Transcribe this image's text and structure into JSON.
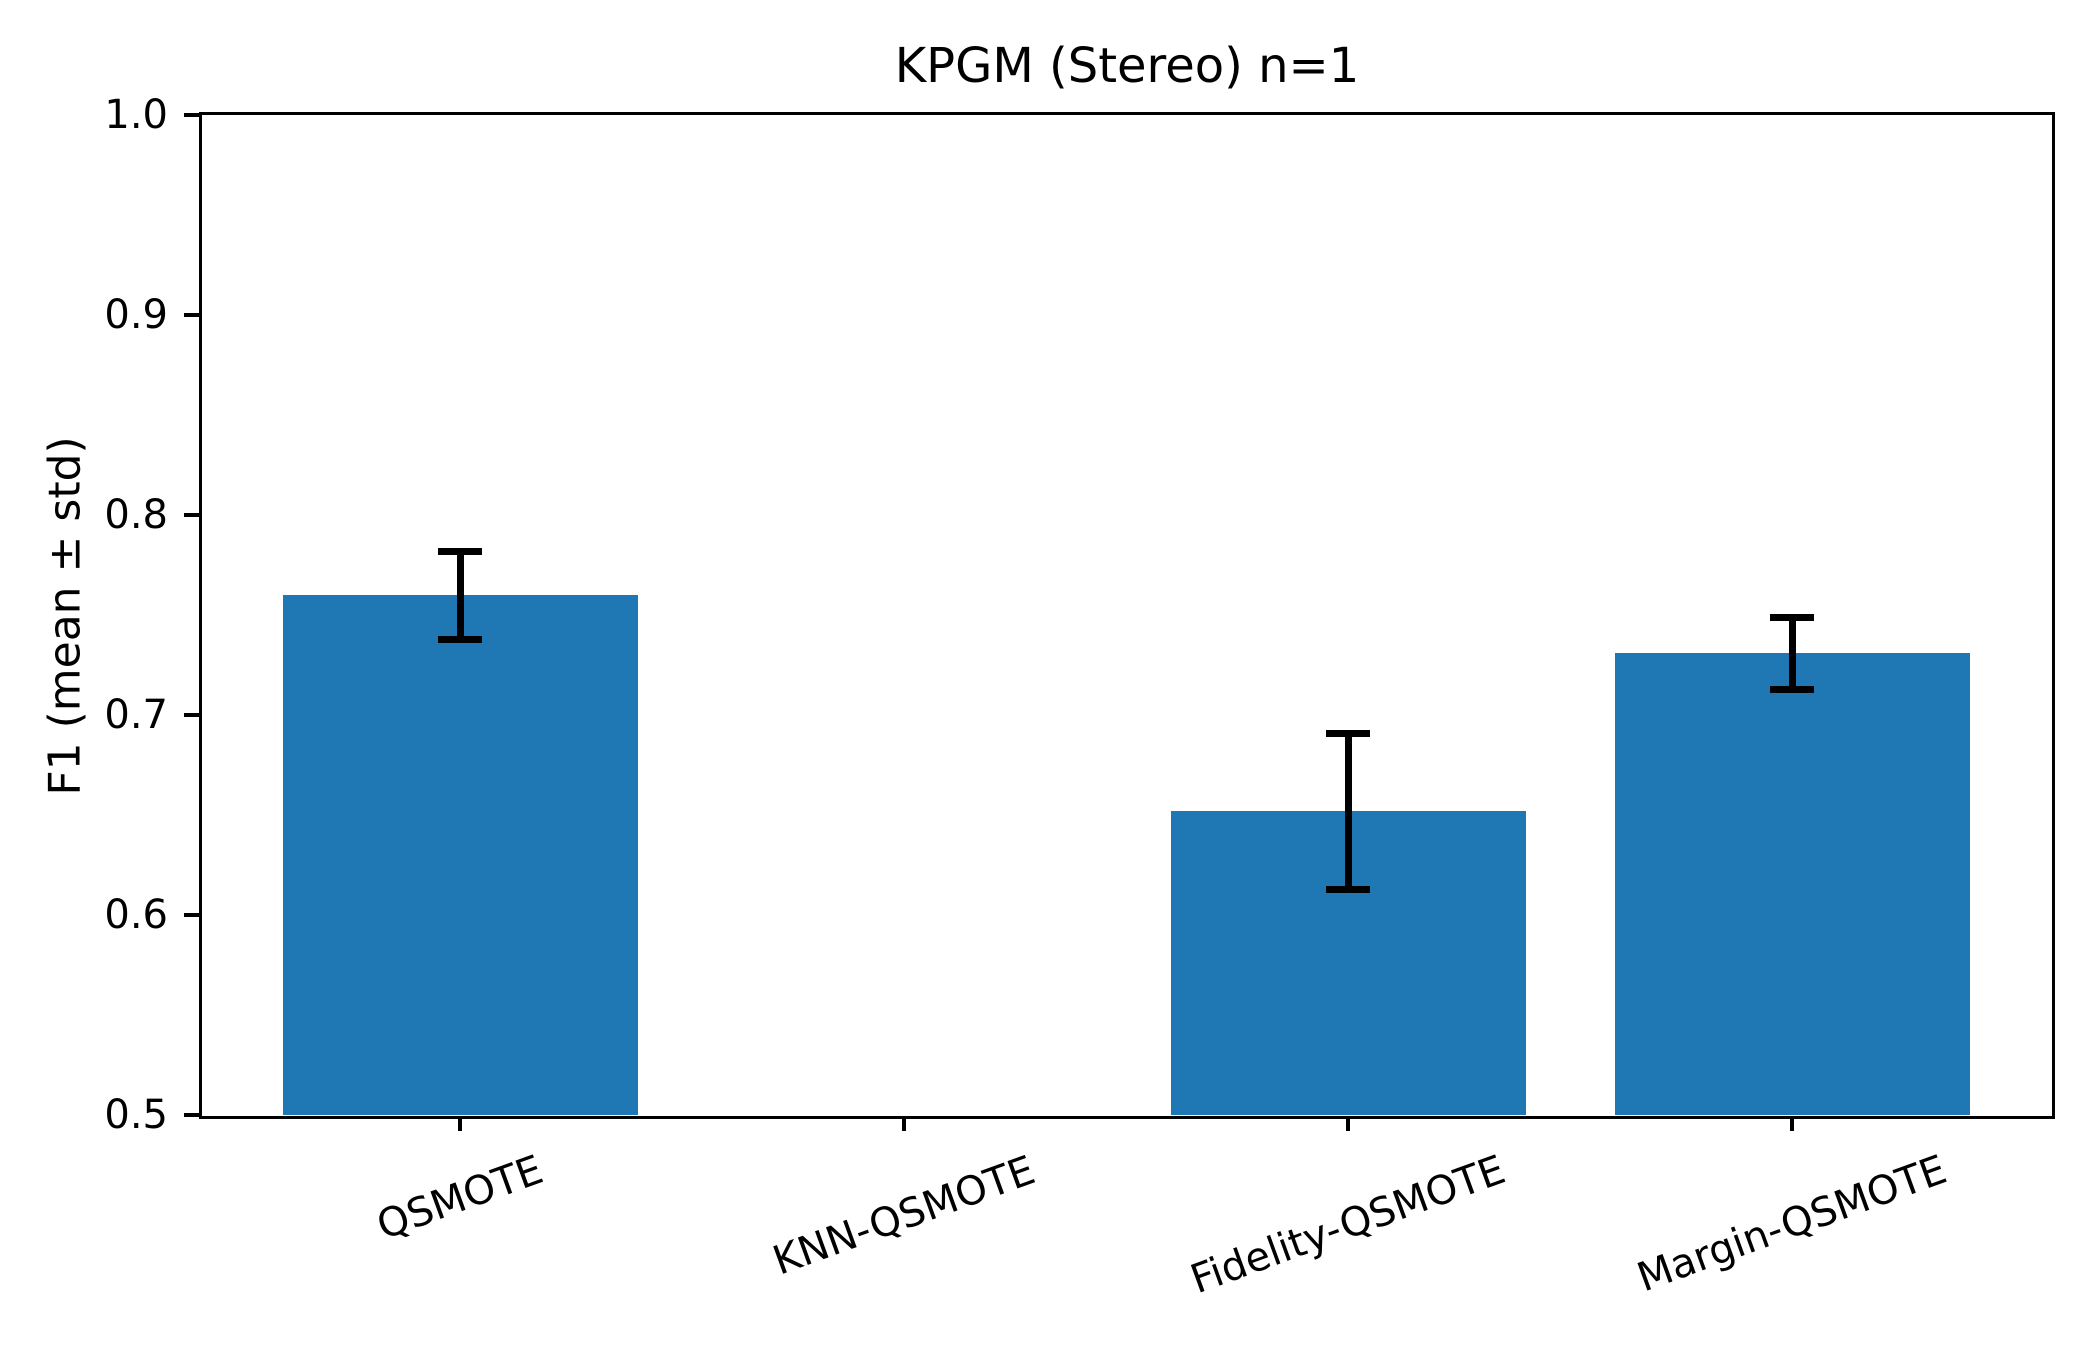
{
  "chart_data": {
    "type": "bar",
    "title": "KPGM (Stereo) n=1",
    "ylabel": "F1 (mean ± std)",
    "xlabel": "",
    "categories": [
      "QSMOTE",
      "KNN-QSMOTE",
      "Fidelity-QSMOTE",
      "Margin-QSMOTE"
    ],
    "values": [
      0.76,
      null,
      0.652,
      0.731
    ],
    "errors": [
      0.022,
      null,
      0.039,
      0.018
    ],
    "ylim": [
      0.5,
      1.0
    ],
    "yticks": [
      1.0,
      0.9,
      0.8,
      0.7,
      0.6,
      0.5
    ],
    "ytick_labels": [
      "1.0",
      "0.9",
      "0.8",
      "0.7",
      "0.6",
      "0.5"
    ],
    "x_tick_rotation_deg": 20,
    "bar_color": "#1f77b4",
    "errorbar_color": "#000000",
    "grid": false,
    "legend_position": "none"
  }
}
